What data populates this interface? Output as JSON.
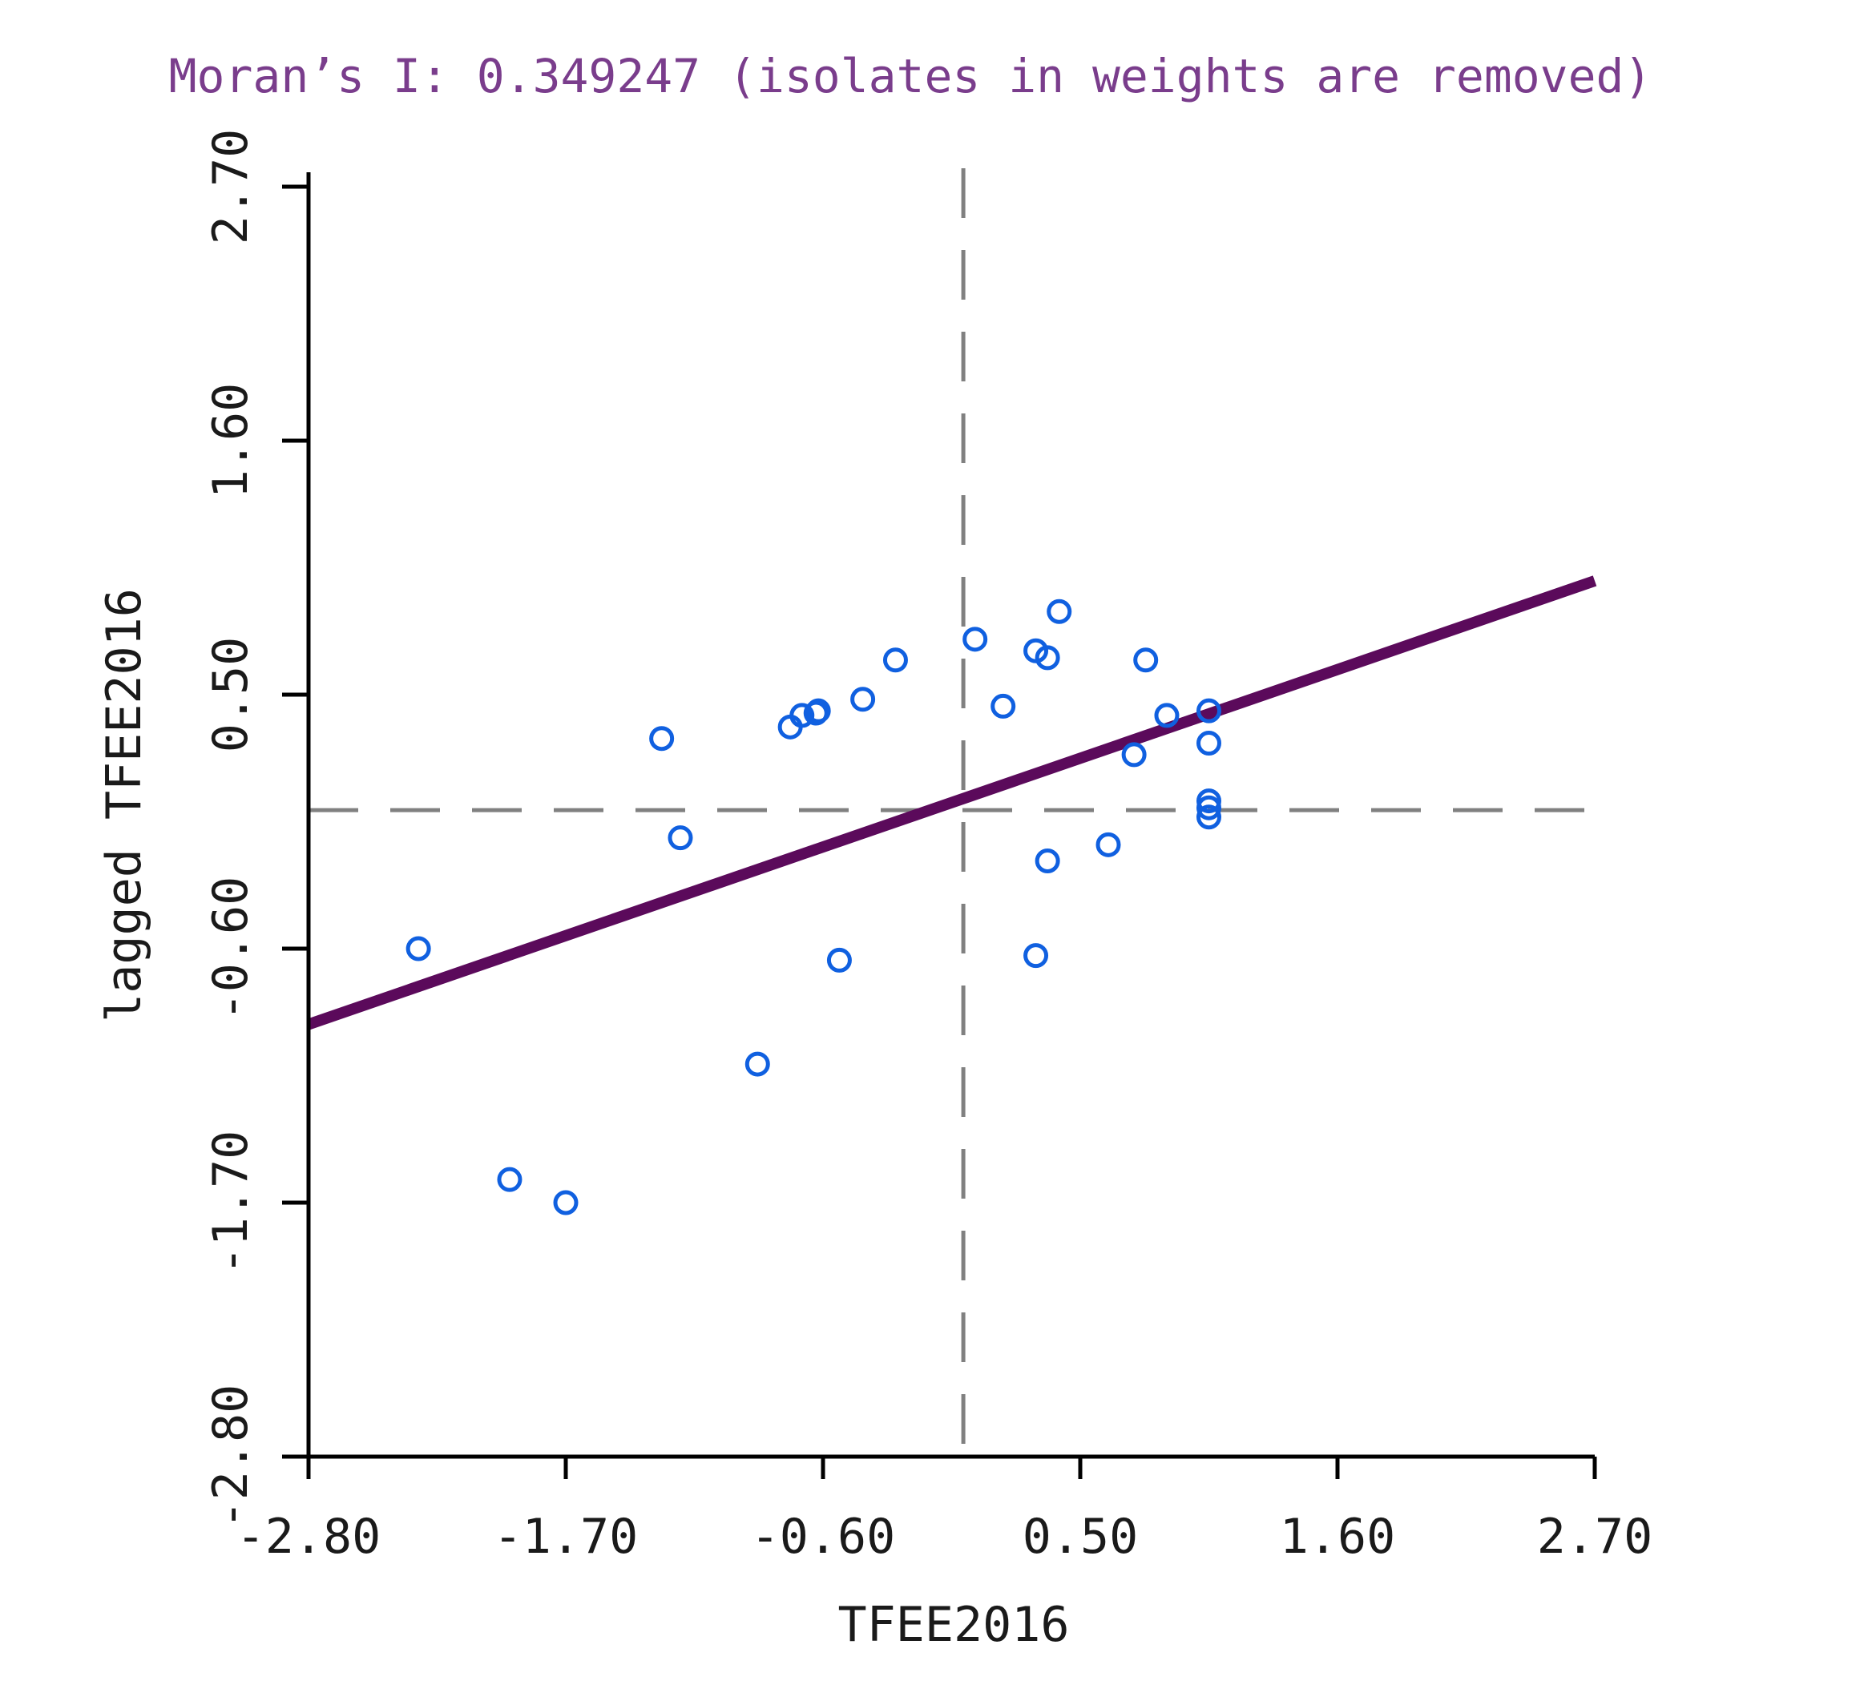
{
  "chart_data": {
    "type": "scatter",
    "title": "Moran’s I: 0.349247 (isolates in weights are removed)",
    "xlabel": "TFEE2016",
    "ylabel": "lagged TFEE2016",
    "xlim": [
      -2.8,
      2.7
    ],
    "ylim": [
      -2.8,
      2.7
    ],
    "x_ticks": [
      -2.8,
      -1.7,
      -0.6,
      0.5,
      1.6,
      2.7
    ],
    "y_ticks": [
      -2.8,
      -1.7,
      -0.6,
      0.5,
      1.6,
      2.7
    ],
    "x_tick_labels": [
      "-2.80",
      "-1.70",
      "-0.60",
      "0.50",
      "1.60",
      "2.70"
    ],
    "y_tick_labels": [
      "-2.80",
      "-1.70",
      "-0.60",
      "0.50",
      "1.60",
      "2.70"
    ],
    "mean_x": 0.0,
    "mean_y": 0.0,
    "regression": {
      "slope": 0.349247,
      "intercept": 0.05
    },
    "series": [
      {
        "name": "observations",
        "points": [
          {
            "x": -2.33,
            "y": -0.6
          },
          {
            "x": -1.94,
            "y": -1.6
          },
          {
            "x": -1.7,
            "y": -1.7
          },
          {
            "x": -1.29,
            "y": 0.31
          },
          {
            "x": -1.21,
            "y": -0.12
          },
          {
            "x": -0.88,
            "y": -1.1
          },
          {
            "x": -0.74,
            "y": 0.36
          },
          {
            "x": -0.69,
            "y": 0.41
          },
          {
            "x": -0.63,
            "y": 0.42
          },
          {
            "x": -0.62,
            "y": 0.43
          },
          {
            "x": -0.53,
            "y": -0.65
          },
          {
            "x": -0.43,
            "y": 0.48
          },
          {
            "x": -0.29,
            "y": 0.65
          },
          {
            "x": 0.05,
            "y": 0.74
          },
          {
            "x": 0.17,
            "y": 0.45
          },
          {
            "x": 0.31,
            "y": 0.69
          },
          {
            "x": 0.36,
            "y": 0.66
          },
          {
            "x": 0.31,
            "y": -0.63
          },
          {
            "x": 0.36,
            "y": -0.22
          },
          {
            "x": 0.41,
            "y": 0.86
          },
          {
            "x": 0.62,
            "y": -0.15
          },
          {
            "x": 0.73,
            "y": 0.24
          },
          {
            "x": 0.78,
            "y": 0.65
          },
          {
            "x": 0.87,
            "y": 0.41
          },
          {
            "x": 1.05,
            "y": 0.43
          },
          {
            "x": 1.05,
            "y": 0.29
          },
          {
            "x": 1.05,
            "y": 0.04
          },
          {
            "x": 1.05,
            "y": 0.01
          },
          {
            "x": 1.05,
            "y": -0.03
          }
        ]
      }
    ]
  }
}
